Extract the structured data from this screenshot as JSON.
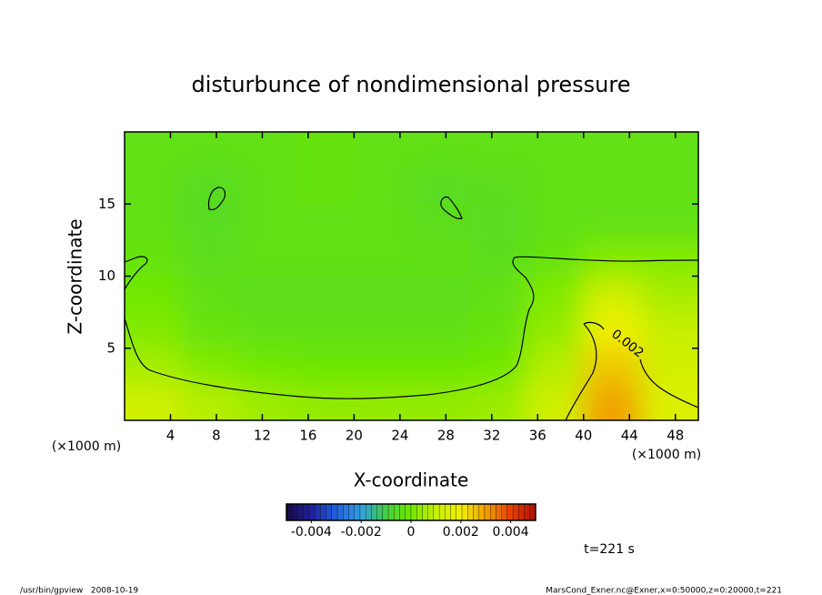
{
  "chart_data": {
    "type": "contour",
    "title": "disturbunce of nondimensional pressure",
    "xlabel": "X-coordinate",
    "ylabel": "Z-coordinate",
    "xunit": "(×1000 m)",
    "yunit": "(×1000 m)",
    "xlim": [
      0,
      50
    ],
    "ylim": [
      0,
      20
    ],
    "xticks": [
      4,
      8,
      12,
      16,
      20,
      24,
      28,
      32,
      36,
      40,
      44,
      48
    ],
    "yticks": [
      5,
      10,
      15
    ],
    "x": [
      2.5,
      7.5,
      12.5,
      17.5,
      22.5,
      27.5,
      32.5,
      37.5,
      42.5,
      47.5
    ],
    "y": [
      1.25,
      3.75,
      6.25,
      8.75,
      11.25,
      13.75,
      16.25,
      18.75
    ],
    "values": [
      [
        0.0012,
        0.0008,
        0.0005,
        0.0004,
        0.0004,
        0.0004,
        0.0005,
        0.0012,
        0.003,
        0.0015
      ],
      [
        0.0006,
        0.0002,
        0,
        -0.0001,
        -0.0001,
        -0.0001,
        0,
        0.0008,
        0.0025,
        0.0012
      ],
      [
        0.0002,
        -0.0002,
        -0.0003,
        -0.0003,
        -0.0003,
        -0.0003,
        -0.0002,
        0.0004,
        0.002,
        0.001
      ],
      [
        0,
        -0.0003,
        -0.0004,
        -0.0004,
        -0.0004,
        -0.0004,
        -0.0003,
        0.0002,
        0.0012,
        0.0006
      ],
      [
        -0.0002,
        -0.0004,
        -0.0003,
        -0.0003,
        -0.0003,
        -0.0003,
        -0.0004,
        -0.0002,
        0.0002,
        0.0002
      ],
      [
        -0.0003,
        -0.0005,
        -0.0003,
        -0.0003,
        -0.0003,
        -0.0004,
        -0.0005,
        -0.0003,
        -0.0003,
        -0.0003
      ],
      [
        -0.0003,
        -0.0005,
        -0.0003,
        -0.0002,
        -0.0003,
        -0.0005,
        -0.0004,
        -0.0003,
        -0.0003,
        -0.0003
      ],
      [
        -0.0003,
        -0.0003,
        -0.0003,
        -0.0002,
        -0.0003,
        -0.0003,
        -0.0003,
        -0.0003,
        -0.0003,
        -0.0003
      ]
    ],
    "colorbar": {
      "lim": [
        -0.005,
        0.005
      ],
      "ticks": [
        -0.004,
        -0.002,
        0,
        0.002,
        0.004
      ],
      "colors": [
        "#1a0a40",
        "#2020a0",
        "#2060e0",
        "#30a0e0",
        "#40d040",
        "#70e800",
        "#c8f000",
        "#f0f000",
        "#f0a000",
        "#e84000",
        "#b01000"
      ]
    },
    "contour_label": "0.002",
    "annotation": "t=221 s",
    "footer_left": "/usr/bin/gpview   2008-10-19",
    "footer_right": "MarsCond_Exner.nc@Exner,x=0:50000,z=0:20000,t=221"
  }
}
